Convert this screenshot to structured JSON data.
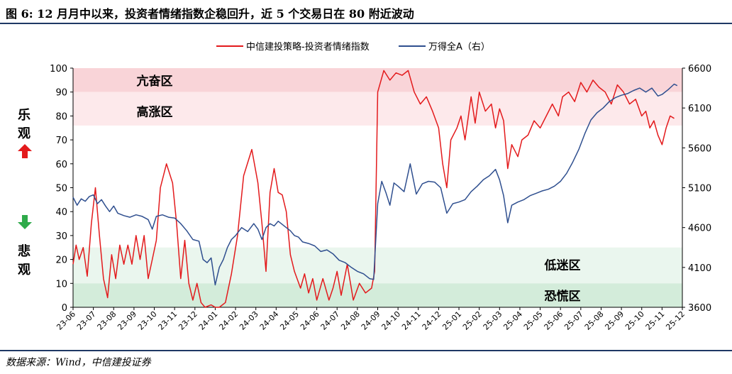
{
  "title": "图 6: 12 月月中以来，投资者情绪指数企稳回升，近 5 个交易日在 80 附近波动",
  "source": "数据来源：Wind，中信建投证券",
  "side_labels": {
    "up_line1": "乐",
    "up_line2": "观",
    "down_line1": "悲",
    "down_line2": "观"
  },
  "colors": {
    "sentiment": "#e31a1c",
    "wind_a": "#2f4f8f",
    "arrow_up": "#e31a1c",
    "arrow_down": "#2eaa4a",
    "zone_hot": "#f9d4d8",
    "zone_high": "#fde9eb",
    "zone_low": "#eaf6ee",
    "zone_panic": "#d3ecda",
    "rule": "#1f3864"
  },
  "chart_data": {
    "type": "line",
    "legend_position": "top-center",
    "grid": false,
    "left_axis": {
      "min": 0,
      "max": 100,
      "ticks": [
        0,
        10,
        20,
        30,
        40,
        50,
        60,
        70,
        80,
        90,
        100
      ]
    },
    "right_axis": {
      "min": 3600,
      "max": 6600,
      "ticks": [
        3600,
        4100,
        4600,
        5100,
        5600,
        6100,
        6600
      ]
    },
    "x_ticks": [
      "23-06",
      "23-07",
      "23-08",
      "23-09",
      "23-10",
      "23-11",
      "23-12",
      "24-01",
      "24-02",
      "24-03",
      "24-04",
      "24-05",
      "24-06",
      "24-07",
      "24-08",
      "24-09",
      "24-10",
      "24-11",
      "24-12",
      "25-01",
      "25-02",
      "25-03",
      "25-04",
      "25-05",
      "25-06",
      "25-07",
      "25-08",
      "25-09",
      "25-10",
      "25-11",
      "25-12"
    ],
    "zones": [
      {
        "label": "亢奋区",
        "from": 90,
        "to": 100,
        "color": "zone_hot"
      },
      {
        "label": "高涨区",
        "from": 76,
        "to": 90,
        "color": "zone_high"
      },
      {
        "label": "低迷区",
        "from": 10,
        "to": 25,
        "color": "zone_low"
      },
      {
        "label": "恐慌区",
        "from": 0,
        "to": 10,
        "color": "zone_panic"
      }
    ],
    "series": [
      {
        "name": "中信建投策略-投资者情绪指数",
        "axis": "left",
        "color_key": "sentiment",
        "values": [
          [
            0,
            18
          ],
          [
            0.15,
            26
          ],
          [
            0.3,
            20
          ],
          [
            0.5,
            25
          ],
          [
            0.7,
            13
          ],
          [
            0.9,
            35
          ],
          [
            1.1,
            50
          ],
          [
            1.3,
            30
          ],
          [
            1.5,
            12
          ],
          [
            1.7,
            4
          ],
          [
            1.9,
            22
          ],
          [
            2.1,
            12
          ],
          [
            2.3,
            26
          ],
          [
            2.5,
            18
          ],
          [
            2.7,
            26
          ],
          [
            2.9,
            18
          ],
          [
            3.1,
            30
          ],
          [
            3.3,
            20
          ],
          [
            3.5,
            30
          ],
          [
            3.7,
            12
          ],
          [
            3.9,
            20
          ],
          [
            4.1,
            28
          ],
          [
            4.3,
            50
          ],
          [
            4.6,
            60
          ],
          [
            4.9,
            52
          ],
          [
            5.1,
            35
          ],
          [
            5.3,
            12
          ],
          [
            5.5,
            28
          ],
          [
            5.7,
            10
          ],
          [
            5.9,
            3
          ],
          [
            6.1,
            10
          ],
          [
            6.3,
            2
          ],
          [
            6.5,
            0
          ],
          [
            6.8,
            1
          ],
          [
            7.0,
            0
          ],
          [
            7.2,
            0
          ],
          [
            7.5,
            2
          ],
          [
            7.8,
            14
          ],
          [
            8.1,
            30
          ],
          [
            8.4,
            55
          ],
          [
            8.8,
            66
          ],
          [
            9.1,
            52
          ],
          [
            9.3,
            35
          ],
          [
            9.5,
            15
          ],
          [
            9.7,
            48
          ],
          [
            9.9,
            58
          ],
          [
            10.1,
            48
          ],
          [
            10.3,
            47
          ],
          [
            10.5,
            40
          ],
          [
            10.7,
            22
          ],
          [
            10.9,
            15
          ],
          [
            11.2,
            8
          ],
          [
            11.4,
            14
          ],
          [
            11.6,
            6
          ],
          [
            11.8,
            12
          ],
          [
            12.0,
            3
          ],
          [
            12.3,
            12
          ],
          [
            12.6,
            3
          ],
          [
            12.8,
            8
          ],
          [
            13.0,
            15
          ],
          [
            13.2,
            5
          ],
          [
            13.5,
            18
          ],
          [
            13.8,
            3
          ],
          [
            14.1,
            10
          ],
          [
            14.4,
            6
          ],
          [
            14.7,
            8
          ],
          [
            14.85,
            15
          ],
          [
            15.0,
            90
          ],
          [
            15.3,
            99
          ],
          [
            15.6,
            95
          ],
          [
            15.9,
            98
          ],
          [
            16.2,
            97
          ],
          [
            16.5,
            99
          ],
          [
            16.8,
            90
          ],
          [
            17.1,
            85
          ],
          [
            17.4,
            88
          ],
          [
            17.7,
            82
          ],
          [
            18.0,
            75
          ],
          [
            18.2,
            60
          ],
          [
            18.4,
            50
          ],
          [
            18.6,
            70
          ],
          [
            18.9,
            75
          ],
          [
            19.1,
            80
          ],
          [
            19.3,
            70
          ],
          [
            19.6,
            88
          ],
          [
            19.8,
            77
          ],
          [
            20.0,
            90
          ],
          [
            20.3,
            82
          ],
          [
            20.6,
            85
          ],
          [
            20.8,
            75
          ],
          [
            21.0,
            83
          ],
          [
            21.2,
            78
          ],
          [
            21.4,
            58
          ],
          [
            21.6,
            68
          ],
          [
            21.9,
            63
          ],
          [
            22.1,
            70
          ],
          [
            22.4,
            72
          ],
          [
            22.7,
            78
          ],
          [
            23.0,
            75
          ],
          [
            23.3,
            80
          ],
          [
            23.6,
            85
          ],
          [
            23.9,
            80
          ],
          [
            24.1,
            88
          ],
          [
            24.4,
            90
          ],
          [
            24.7,
            86
          ],
          [
            25.0,
            94
          ],
          [
            25.3,
            90
          ],
          [
            25.6,
            95
          ],
          [
            25.9,
            92
          ],
          [
            26.2,
            90
          ],
          [
            26.5,
            85
          ],
          [
            26.8,
            93
          ],
          [
            27.1,
            90
          ],
          [
            27.4,
            85
          ],
          [
            27.7,
            87
          ],
          [
            28.0,
            80
          ],
          [
            28.2,
            82
          ],
          [
            28.4,
            75
          ],
          [
            28.6,
            78
          ],
          [
            28.8,
            72
          ],
          [
            29.0,
            68
          ],
          [
            29.2,
            75
          ],
          [
            29.4,
            80
          ],
          [
            29.6,
            79
          ]
        ]
      },
      {
        "name": "万得全A（右）",
        "axis": "right",
        "color_key": "wind_a",
        "values": [
          [
            0,
            4980
          ],
          [
            0.2,
            4880
          ],
          [
            0.4,
            4960
          ],
          [
            0.6,
            4930
          ],
          [
            0.8,
            4990
          ],
          [
            1.0,
            5010
          ],
          [
            1.2,
            4900
          ],
          [
            1.4,
            4950
          ],
          [
            1.6,
            4870
          ],
          [
            1.8,
            4800
          ],
          [
            2.0,
            4870
          ],
          [
            2.2,
            4780
          ],
          [
            2.5,
            4750
          ],
          [
            2.8,
            4730
          ],
          [
            3.1,
            4760
          ],
          [
            3.4,
            4740
          ],
          [
            3.7,
            4700
          ],
          [
            3.9,
            4580
          ],
          [
            4.1,
            4740
          ],
          [
            4.4,
            4760
          ],
          [
            4.7,
            4730
          ],
          [
            5.0,
            4720
          ],
          [
            5.3,
            4650
          ],
          [
            5.6,
            4560
          ],
          [
            5.9,
            4450
          ],
          [
            6.2,
            4430
          ],
          [
            6.4,
            4200
          ],
          [
            6.6,
            4160
          ],
          [
            6.8,
            4220
          ],
          [
            7.0,
            3880
          ],
          [
            7.2,
            4100
          ],
          [
            7.4,
            4200
          ],
          [
            7.6,
            4350
          ],
          [
            7.8,
            4450
          ],
          [
            8.0,
            4500
          ],
          [
            8.3,
            4600
          ],
          [
            8.6,
            4550
          ],
          [
            8.9,
            4650
          ],
          [
            9.1,
            4580
          ],
          [
            9.3,
            4450
          ],
          [
            9.5,
            4600
          ],
          [
            9.7,
            4650
          ],
          [
            9.9,
            4620
          ],
          [
            10.1,
            4680
          ],
          [
            10.3,
            4640
          ],
          [
            10.5,
            4600
          ],
          [
            10.7,
            4560
          ],
          [
            10.9,
            4500
          ],
          [
            11.1,
            4480
          ],
          [
            11.3,
            4420
          ],
          [
            11.6,
            4400
          ],
          [
            11.9,
            4370
          ],
          [
            12.2,
            4300
          ],
          [
            12.5,
            4320
          ],
          [
            12.8,
            4270
          ],
          [
            13.1,
            4190
          ],
          [
            13.4,
            4160
          ],
          [
            13.7,
            4100
          ],
          [
            14.0,
            4050
          ],
          [
            14.3,
            4020
          ],
          [
            14.6,
            3960
          ],
          [
            14.8,
            3950
          ],
          [
            15.0,
            4900
          ],
          [
            15.2,
            5180
          ],
          [
            15.4,
            5040
          ],
          [
            15.6,
            4880
          ],
          [
            15.8,
            5160
          ],
          [
            16.0,
            5120
          ],
          [
            16.3,
            5050
          ],
          [
            16.6,
            5400
          ],
          [
            16.9,
            5020
          ],
          [
            17.2,
            5150
          ],
          [
            17.5,
            5180
          ],
          [
            17.8,
            5170
          ],
          [
            18.1,
            5100
          ],
          [
            18.4,
            4780
          ],
          [
            18.7,
            4900
          ],
          [
            19.0,
            4920
          ],
          [
            19.3,
            4950
          ],
          [
            19.6,
            5050
          ],
          [
            19.9,
            5120
          ],
          [
            20.2,
            5200
          ],
          [
            20.5,
            5250
          ],
          [
            20.8,
            5330
          ],
          [
            21.0,
            5200
          ],
          [
            21.2,
            5000
          ],
          [
            21.4,
            4660
          ],
          [
            21.6,
            4880
          ],
          [
            21.9,
            4920
          ],
          [
            22.2,
            4950
          ],
          [
            22.5,
            5000
          ],
          [
            22.8,
            5030
          ],
          [
            23.1,
            5060
          ],
          [
            23.4,
            5080
          ],
          [
            23.7,
            5120
          ],
          [
            24.0,
            5180
          ],
          [
            24.3,
            5280
          ],
          [
            24.6,
            5420
          ],
          [
            24.9,
            5580
          ],
          [
            25.2,
            5780
          ],
          [
            25.5,
            5950
          ],
          [
            25.8,
            6040
          ],
          [
            26.1,
            6100
          ],
          [
            26.4,
            6180
          ],
          [
            26.7,
            6230
          ],
          [
            27.0,
            6260
          ],
          [
            27.3,
            6280
          ],
          [
            27.6,
            6320
          ],
          [
            27.9,
            6350
          ],
          [
            28.2,
            6300
          ],
          [
            28.5,
            6350
          ],
          [
            28.8,
            6250
          ],
          [
            29.0,
            6270
          ],
          [
            29.3,
            6330
          ],
          [
            29.6,
            6400
          ],
          [
            29.75,
            6380
          ]
        ]
      }
    ]
  }
}
